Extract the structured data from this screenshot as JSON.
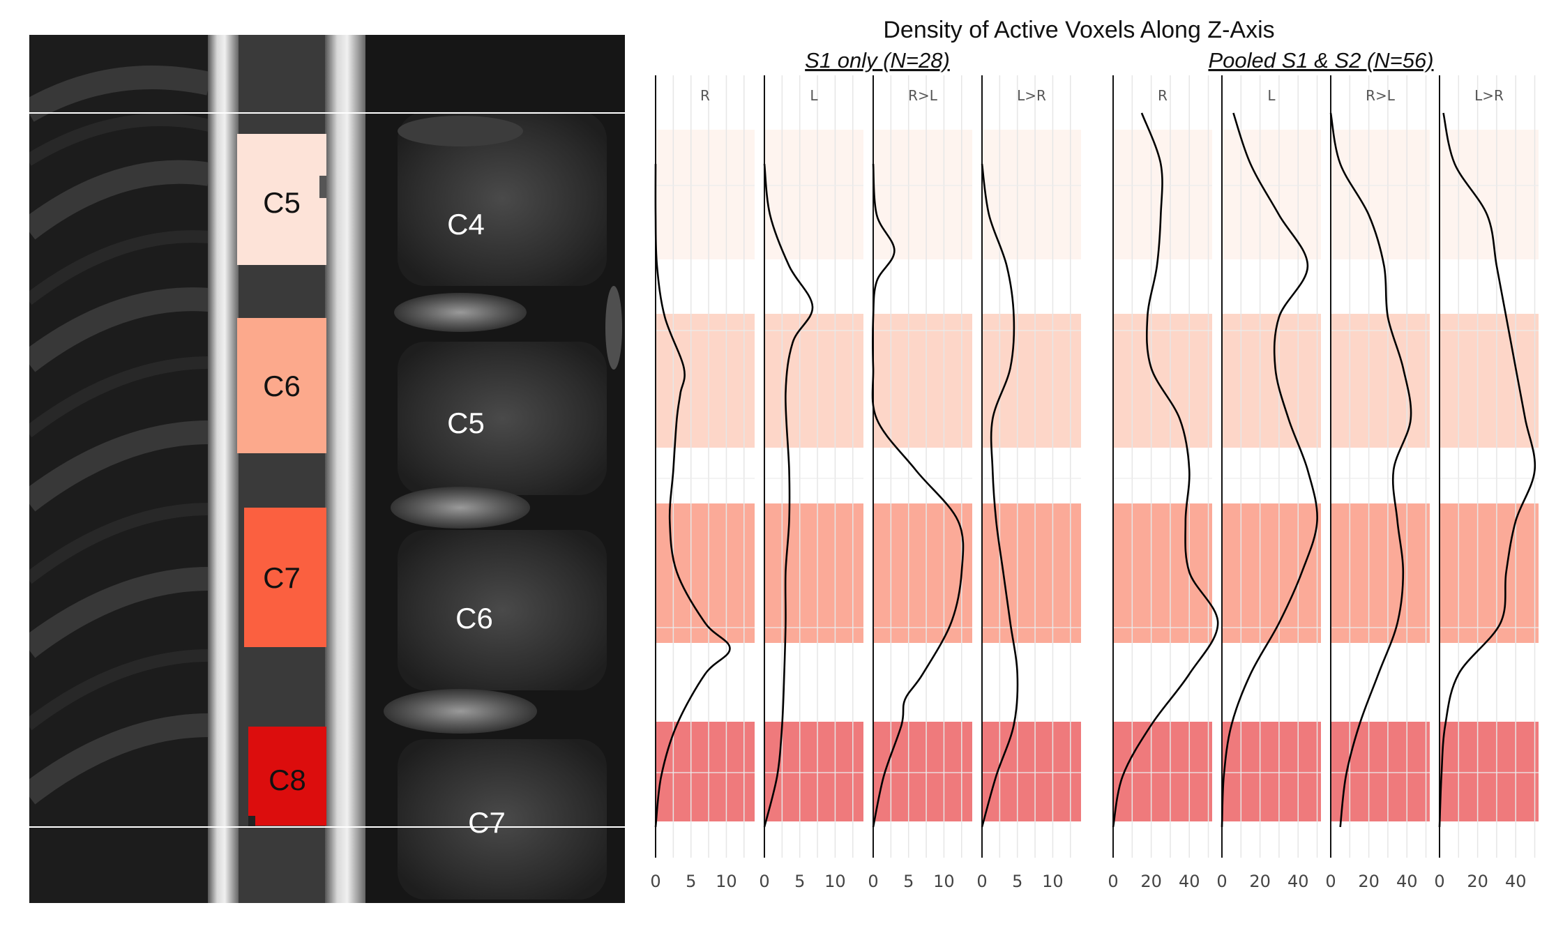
{
  "chart_data": {
    "type": "line",
    "title": "Density of Active Voxels Along Z-Axis",
    "mri_image": {
      "segment_labels": [
        "C5",
        "C6",
        "C7",
        "C8"
      ],
      "segment_colors": [
        "#fde3d8",
        "#fca98c",
        "#fb6040",
        "#dc0d0d"
      ],
      "vertebra_labels": [
        "C4",
        "C5",
        "C6",
        "C7"
      ]
    },
    "band_colors": [
      "#fef4ef",
      "#fdd6c8",
      "#fbaa98",
      "#ef7a7c"
    ],
    "groups": [
      {
        "label": "S1 only (N=28)",
        "xlim": [
          0,
          14
        ],
        "xticks": [
          0,
          5,
          10
        ],
        "panels": [
          {
            "label": "R",
            "series": [
              [
                1,
                0
              ],
              [
                2,
                0
              ],
              [
                3,
                0.2
              ],
              [
                4,
                1.3
              ],
              [
                5,
                4
              ],
              [
                5.5,
                3.5
              ],
              [
                6,
                3
              ],
              [
                7,
                2.5
              ],
              [
                8,
                2
              ],
              [
                9,
                3
              ],
              [
                10,
                7
              ],
              [
                10.5,
                10.5
              ],
              [
                11,
                7
              ],
              [
                12,
                3
              ],
              [
                13,
                0.8
              ],
              [
                14,
                0
              ]
            ]
          },
          {
            "label": "L",
            "series": [
              [
                1,
                0
              ],
              [
                2,
                0.8
              ],
              [
                3,
                3.5
              ],
              [
                3.8,
                6.8
              ],
              [
                4.5,
                4
              ],
              [
                5.5,
                3
              ],
              [
                7,
                3.5
              ],
              [
                8,
                3.5
              ],
              [
                9,
                3
              ],
              [
                10,
                3
              ],
              [
                11,
                2.8
              ],
              [
                12,
                2.5
              ],
              [
                13,
                1.8
              ],
              [
                14,
                0
              ]
            ]
          },
          {
            "label": "R>L",
            "series": [
              [
                1,
                0
              ],
              [
                2,
                0.5
              ],
              [
                2.7,
                3
              ],
              [
                3.3,
                0.5
              ],
              [
                4,
                0
              ],
              [
                5,
                0
              ],
              [
                6,
                0.5
              ],
              [
                7,
                6
              ],
              [
                8,
                12
              ],
              [
                9,
                12.5
              ],
              [
                10,
                11
              ],
              [
                11,
                7
              ],
              [
                11.5,
                4.5
              ],
              [
                12,
                4
              ],
              [
                13,
                1.5
              ],
              [
                14,
                0
              ]
            ]
          },
          {
            "label": "L>R",
            "series": [
              [
                1,
                0
              ],
              [
                2,
                1
              ],
              [
                3,
                3.5
              ],
              [
                4,
                4.5
              ],
              [
                5,
                4
              ],
              [
                6,
                1.5
              ],
              [
                7,
                1.5
              ],
              [
                8,
                2
              ],
              [
                9,
                3
              ],
              [
                10,
                4
              ],
              [
                11,
                5
              ],
              [
                12,
                4.5
              ],
              [
                13,
                2
              ],
              [
                14,
                0
              ]
            ]
          }
        ]
      },
      {
        "label": "Pooled S1 & S2 (N=56)",
        "xlim": [
          0,
          52
        ],
        "xticks": [
          0,
          20,
          40
        ],
        "panels": [
          {
            "label": "R",
            "series": [
              [
                0,
                15
              ],
              [
                1,
                25
              ],
              [
                2,
                25
              ],
              [
                3,
                23
              ],
              [
                4,
                18
              ],
              [
                5,
                20
              ],
              [
                6,
                35
              ],
              [
                7,
                40
              ],
              [
                8,
                38
              ],
              [
                9,
                40
              ],
              [
                10,
                55
              ],
              [
                11,
                40
              ],
              [
                12,
                20
              ],
              [
                13,
                5
              ],
              [
                14,
                0
              ]
            ]
          },
          {
            "label": "L",
            "series": [
              [
                0,
                6
              ],
              [
                1,
                15
              ],
              [
                2,
                30
              ],
              [
                3,
                45
              ],
              [
                4,
                30
              ],
              [
                5,
                28
              ],
              [
                6,
                35
              ],
              [
                7,
                45
              ],
              [
                8,
                50
              ],
              [
                9,
                42
              ],
              [
                10,
                30
              ],
              [
                11,
                15
              ],
              [
                12,
                5
              ],
              [
                13,
                1
              ],
              [
                14,
                0
              ]
            ]
          },
          {
            "label": "R>L",
            "series": [
              [
                0,
                0
              ],
              [
                1,
                5
              ],
              [
                2,
                20
              ],
              [
                3,
                28
              ],
              [
                4,
                30
              ],
              [
                5,
                38
              ],
              [
                6,
                42
              ],
              [
                7,
                33
              ],
              [
                8,
                35
              ],
              [
                9,
                38
              ],
              [
                10,
                35
              ],
              [
                11,
                25
              ],
              [
                12,
                15
              ],
              [
                13,
                8
              ],
              [
                14,
                5
              ]
            ]
          },
          {
            "label": "L>R",
            "series": [
              [
                0,
                2
              ],
              [
                1,
                8
              ],
              [
                2,
                25
              ],
              [
                3,
                30
              ],
              [
                4,
                35
              ],
              [
                5,
                40
              ],
              [
                6,
                45
              ],
              [
                7,
                50
              ],
              [
                8,
                40
              ],
              [
                9,
                35
              ],
              [
                10,
                32
              ],
              [
                11,
                10
              ],
              [
                12,
                3
              ],
              [
                13,
                1
              ],
              [
                14,
                0
              ]
            ]
          }
        ]
      }
    ]
  }
}
